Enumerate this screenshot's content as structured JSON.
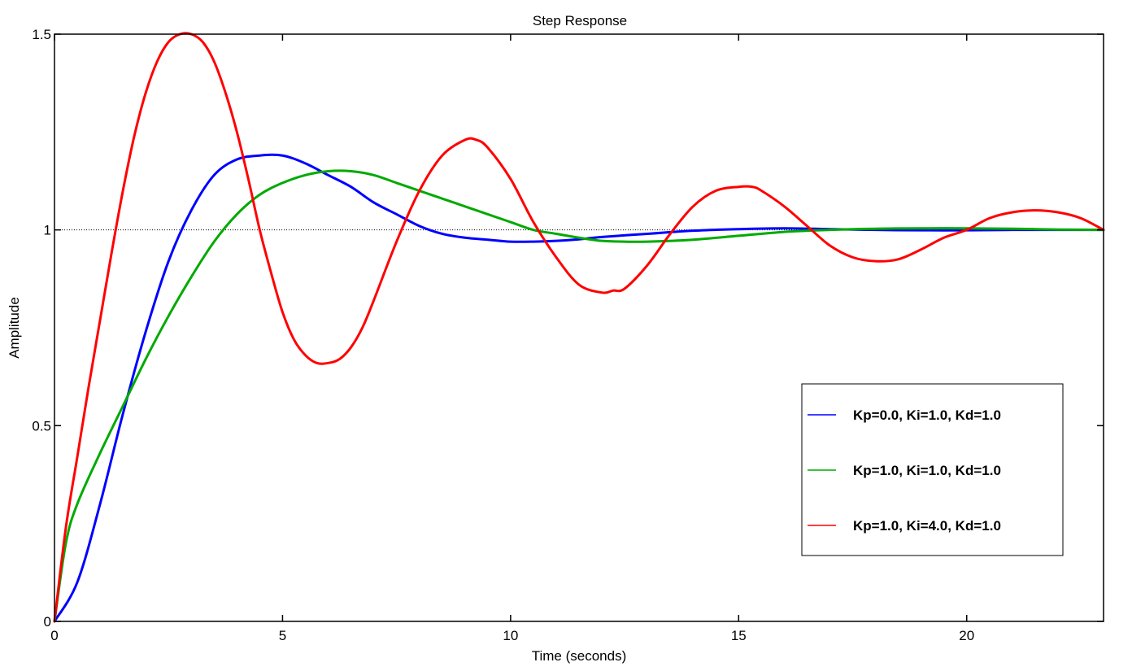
{
  "chart_data": {
    "type": "line",
    "title": "Step Response",
    "xlabel": "Time (seconds)",
    "ylabel": "Amplitude",
    "xlim": [
      0,
      23
    ],
    "ylim": [
      0,
      1.5
    ],
    "xticks": [
      0,
      5,
      10,
      15,
      20
    ],
    "yticks": [
      0,
      0.5,
      1,
      1.5
    ],
    "xtick_labels": [
      "0",
      "5",
      "10",
      "15",
      "20"
    ],
    "ytick_labels": [
      "0",
      "0.5",
      "1",
      "1.5"
    ],
    "reference_line": 1,
    "grid": false,
    "legend_position": "lower-right",
    "series": [
      {
        "name": "Kp=0.0, Ki=1.0, Kd=1.0",
        "color": "#0000ff",
        "x": [
          0,
          0.5,
          1,
          1.5,
          2,
          2.5,
          3,
          3.5,
          4,
          4.5,
          5,
          5.5,
          6,
          6.5,
          7,
          7.5,
          8,
          8.5,
          9,
          9.5,
          10,
          10.5,
          11,
          11.5,
          12,
          13,
          14,
          15,
          16,
          17,
          18,
          19,
          20,
          21,
          22,
          23
        ],
        "y": [
          0,
          0.1,
          0.3,
          0.53,
          0.74,
          0.92,
          1.05,
          1.14,
          1.18,
          1.19,
          1.19,
          1.17,
          1.14,
          1.11,
          1.07,
          1.04,
          1.01,
          0.99,
          0.98,
          0.975,
          0.97,
          0.97,
          0.972,
          0.976,
          0.982,
          0.99,
          0.998,
          1.002,
          1.004,
          1.002,
          1.0,
          0.999,
          0.999,
          1.0,
          1.0,
          1.0
        ]
      },
      {
        "name": "Kp=1.0, Ki=1.0, Kd=1.0",
        "color": "#00aa00",
        "x": [
          0,
          0.25,
          0.5,
          1,
          1.5,
          2,
          2.5,
          3,
          3.5,
          4,
          4.5,
          5,
          5.5,
          6,
          6.5,
          7,
          7.5,
          8,
          8.5,
          9,
          9.5,
          10,
          10.5,
          11,
          11.5,
          12,
          12.5,
          13,
          14,
          15,
          16,
          17,
          18,
          19,
          20,
          21,
          22,
          23
        ],
        "y": [
          0,
          0.2,
          0.3,
          0.43,
          0.55,
          0.67,
          0.78,
          0.88,
          0.97,
          1.04,
          1.09,
          1.12,
          1.14,
          1.15,
          1.15,
          1.14,
          1.12,
          1.1,
          1.08,
          1.06,
          1.04,
          1.02,
          1.0,
          0.99,
          0.98,
          0.972,
          0.97,
          0.97,
          0.975,
          0.985,
          0.995,
          1.0,
          1.003,
          1.004,
          1.004,
          1.003,
          1.001,
          1.0
        ]
      },
      {
        "name": "Kp=1.0, Ki=4.0, Kd=1.0",
        "color": "#ff0000",
        "x": [
          0,
          0.25,
          0.5,
          0.75,
          1,
          1.25,
          1.5,
          1.75,
          2,
          2.25,
          2.5,
          2.75,
          3,
          3.25,
          3.5,
          3.75,
          4,
          4.25,
          4.5,
          4.75,
          5,
          5.25,
          5.5,
          5.75,
          6,
          6.25,
          6.5,
          6.75,
          7,
          7.5,
          8,
          8.5,
          9,
          9.25,
          9.5,
          10,
          10.5,
          11,
          11.5,
          12,
          12.25,
          12.5,
          13,
          13.5,
          14,
          14.5,
          15,
          15.3,
          15.5,
          16,
          16.5,
          17,
          17.5,
          18,
          18.5,
          19,
          19.5,
          20,
          20.5,
          21,
          21.5,
          22,
          22.5,
          23
        ],
        "y": [
          0,
          0.24,
          0.42,
          0.6,
          0.77,
          0.94,
          1.1,
          1.24,
          1.35,
          1.43,
          1.48,
          1.5,
          1.5,
          1.48,
          1.43,
          1.35,
          1.25,
          1.13,
          1.0,
          0.89,
          0.79,
          0.72,
          0.68,
          0.66,
          0.66,
          0.67,
          0.7,
          0.75,
          0.82,
          0.97,
          1.1,
          1.19,
          1.23,
          1.23,
          1.21,
          1.13,
          1.02,
          0.93,
          0.86,
          0.84,
          0.845,
          0.85,
          0.91,
          0.99,
          1.06,
          1.1,
          1.11,
          1.11,
          1.1,
          1.06,
          1.01,
          0.96,
          0.93,
          0.92,
          0.925,
          0.95,
          0.98,
          1.0,
          1.03,
          1.045,
          1.05,
          1.045,
          1.03,
          1.0
        ]
      }
    ]
  }
}
